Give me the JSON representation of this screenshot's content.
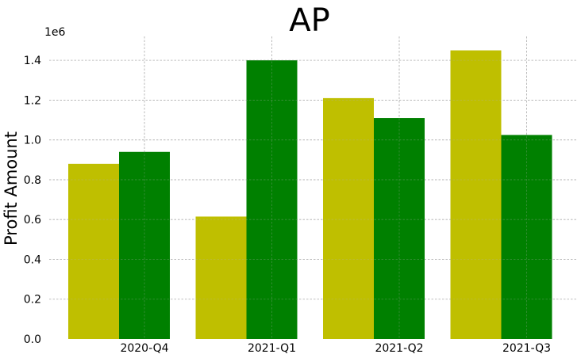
{
  "chart_data": {
    "type": "bar",
    "title": "AP",
    "xlabel": "",
    "ylabel": "Profit Amount",
    "y_offset_label": "1e6",
    "categories": [
      "2020-Q4",
      "2021-Q1",
      "2021-Q2",
      "2021-Q3"
    ],
    "series": [
      {
        "values": [
          880000,
          615000,
          1210000,
          1450000
        ],
        "color": "#bfbf00"
      },
      {
        "values": [
          940000,
          1400000,
          1110000,
          1025000
        ],
        "color": "#008000"
      }
    ],
    "ylim": [
      0,
      1.52
    ],
    "yticks": [
      0.0,
      0.2,
      0.4,
      0.6,
      0.8,
      1.0,
      1.2,
      1.4
    ],
    "ytick_labels": [
      "0.0",
      "0.2",
      "0.4",
      "0.6",
      "0.8",
      "1.0",
      "1.2",
      "1.4"
    ],
    "y_scale_factor": 1000000,
    "grid": true,
    "legend": "none"
  }
}
